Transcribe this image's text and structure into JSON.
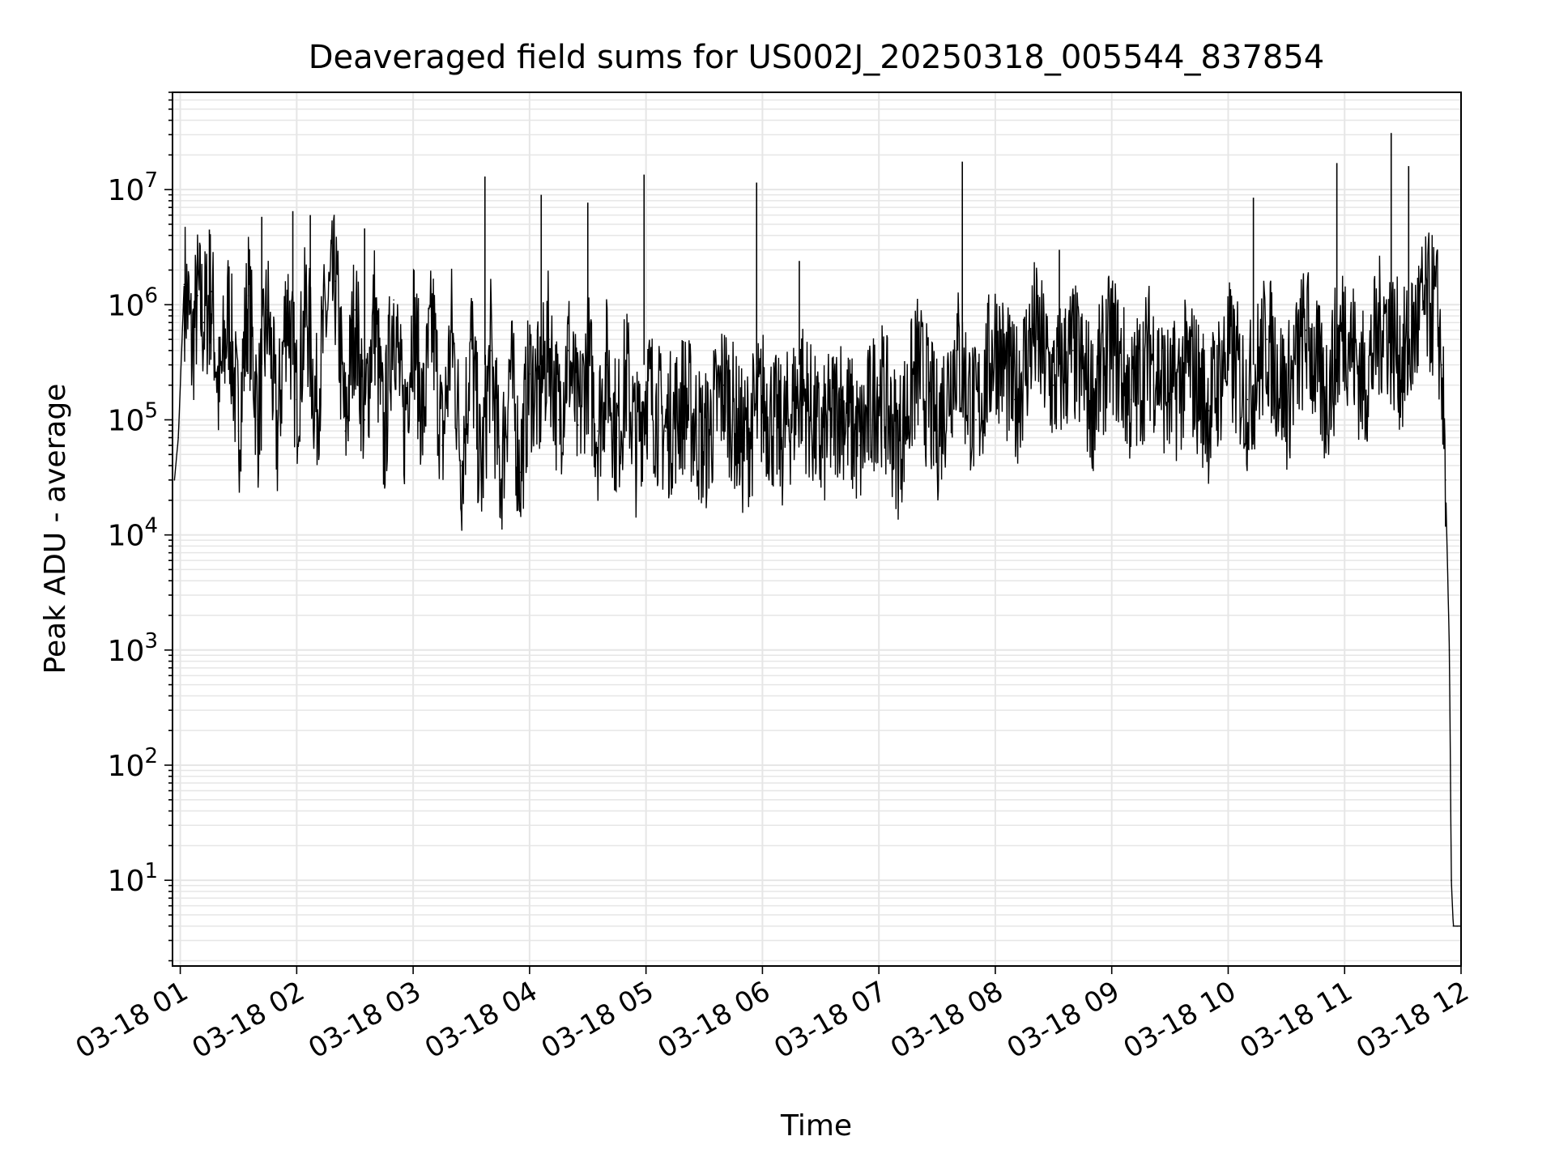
{
  "chart_data": {
    "type": "line",
    "title": "Deaveraged field sums for US002J_20250318_005544_837854",
    "xlabel": "Time",
    "ylabel": "Peak ADU - average",
    "yscale": "log",
    "grid": true,
    "ylim": [
      1.8,
      70000000
    ],
    "xlim": [
      "2025-03-18 00:56",
      "2025-03-18 12:00"
    ],
    "x_ticks": [
      "03-18 01",
      "03-18 02",
      "03-18 03",
      "03-18 04",
      "03-18 05",
      "03-18 06",
      "03-18 07",
      "03-18 08",
      "03-18 09",
      "03-18 10",
      "03-18 11",
      "03-18 12"
    ],
    "y_ticks": [
      {
        "base": "10",
        "exp": "1"
      },
      {
        "base": "10",
        "exp": "2"
      },
      {
        "base": "10",
        "exp": "3"
      },
      {
        "base": "10",
        "exp": "4"
      },
      {
        "base": "10",
        "exp": "5"
      },
      {
        "base": "10",
        "exp": "6"
      },
      {
        "base": "10",
        "exp": "7"
      }
    ],
    "line_color": "#000000",
    "grid_color": "#e6e6e6",
    "series": [
      {
        "name": "",
        "x": [
          "2025-03-18 00:57",
          "2025-03-18 00:59",
          "2025-03-18 01:02",
          "2025-03-18 01:04",
          "2025-03-18 01:06",
          "2025-03-18 01:09",
          "2025-03-18 01:12",
          "2025-03-18 01:16",
          "2025-03-18 01:20",
          "2025-03-18 01:25",
          "2025-03-18 01:30",
          "2025-03-18 01:35",
          "2025-03-18 01:40",
          "2025-03-18 01:45",
          "2025-03-18 01:50",
          "2025-03-18 01:55",
          "2025-03-18 02:00",
          "2025-03-18 02:05",
          "2025-03-18 02:10",
          "2025-03-18 02:15",
          "2025-03-18 02:20",
          "2025-03-18 02:25",
          "2025-03-18 02:30",
          "2025-03-18 02:35",
          "2025-03-18 02:40",
          "2025-03-18 02:45",
          "2025-03-18 02:50",
          "2025-03-18 02:55",
          "2025-03-18 03:00",
          "2025-03-18 03:05",
          "2025-03-18 03:10",
          "2025-03-18 03:15",
          "2025-03-18 03:20",
          "2025-03-18 03:25",
          "2025-03-18 03:30",
          "2025-03-18 03:35",
          "2025-03-18 03:40",
          "2025-03-18 03:45",
          "2025-03-18 03:50",
          "2025-03-18 03:55",
          "2025-03-18 04:00",
          "2025-03-18 04:05",
          "2025-03-18 04:10",
          "2025-03-18 04:15",
          "2025-03-18 04:20",
          "2025-03-18 04:25",
          "2025-03-18 04:30",
          "2025-03-18 04:35",
          "2025-03-18 04:40",
          "2025-03-18 04:45",
          "2025-03-18 04:50",
          "2025-03-18 04:55",
          "2025-03-18 05:00",
          "2025-03-18 05:10",
          "2025-03-18 05:20",
          "2025-03-18 05:30",
          "2025-03-18 05:40",
          "2025-03-18 05:50",
          "2025-03-18 06:00",
          "2025-03-18 06:10",
          "2025-03-18 06:20",
          "2025-03-18 06:30",
          "2025-03-18 06:40",
          "2025-03-18 06:50",
          "2025-03-18 07:00",
          "2025-03-18 07:10",
          "2025-03-18 07:20",
          "2025-03-18 07:30",
          "2025-03-18 07:40",
          "2025-03-18 07:50",
          "2025-03-18 08:00",
          "2025-03-18 08:10",
          "2025-03-18 08:20",
          "2025-03-18 08:30",
          "2025-03-18 08:40",
          "2025-03-18 08:50",
          "2025-03-18 09:00",
          "2025-03-18 09:10",
          "2025-03-18 09:20",
          "2025-03-18 09:30",
          "2025-03-18 09:40",
          "2025-03-18 09:50",
          "2025-03-18 10:00",
          "2025-03-18 10:10",
          "2025-03-18 10:20",
          "2025-03-18 10:30",
          "2025-03-18 10:40",
          "2025-03-18 10:50",
          "2025-03-18 11:00",
          "2025-03-18 11:10",
          "2025-03-18 11:20",
          "2025-03-18 11:30",
          "2025-03-18 11:40",
          "2025-03-18 11:45",
          "2025-03-18 11:48",
          "2025-03-18 11:50",
          "2025-03-18 11:52",
          "2025-03-18 11:54",
          "2025-03-18 11:55",
          "2025-03-18 11:56",
          "2025-03-18 11:58",
          "2025-03-18 12:00"
        ],
        "y": [
          30000,
          70000,
          1500000,
          1000000,
          400000,
          1200000,
          700000,
          1300000,
          150000,
          900000,
          80000,
          1200000,
          100000,
          900000,
          70000,
          1200000,
          150000,
          1000000,
          120000,
          800000,
          1600000,
          80000,
          900000,
          100000,
          900000,
          60000,
          1100000,
          80000,
          800000,
          100000,
          700000,
          60000,
          600000,
          40000,
          500000,
          30000,
          400000,
          30000,
          300000,
          35000,
          250000,
          150000,
          500000,
          100000,
          400000,
          90000,
          350000,
          80000,
          300000,
          70000,
          250000,
          60000,
          200000,
          80000,
          150000,
          60000,
          200000,
          60000,
          150000,
          70000,
          200000,
          60000,
          150000,
          60000,
          200000,
          60000,
          300000,
          80000,
          400000,
          100000,
          500000,
          150000,
          600000,
          200000,
          400000,
          150000,
          500000,
          150000,
          400000,
          150000,
          300000,
          120000,
          400000,
          150000,
          500000,
          150000,
          600000,
          150000,
          700000,
          200000,
          800000,
          300000,
          900000,
          1000000,
          800000,
          300000,
          30000,
          1000,
          10,
          4,
          4,
          4
        ]
      }
    ],
    "spikes": [
      {
        "x": "2025-03-18 01:15",
        "y": 4500000
      },
      {
        "x": "2025-03-18 01:42",
        "y": 5800000
      },
      {
        "x": "2025-03-18 01:58",
        "y": 6500000
      },
      {
        "x": "2025-03-18 02:07",
        "y": 6000000
      },
      {
        "x": "2025-03-18 02:35",
        "y": 4600000
      },
      {
        "x": "2025-03-18 03:37",
        "y": 13000000
      },
      {
        "x": "2025-03-18 04:06",
        "y": 9000000
      },
      {
        "x": "2025-03-18 04:30",
        "y": 7700000
      },
      {
        "x": "2025-03-18 04:59",
        "y": 13500000
      },
      {
        "x": "2025-03-18 05:57",
        "y": 11500000
      },
      {
        "x": "2025-03-18 06:19",
        "y": 2400000
      },
      {
        "x": "2025-03-18 07:43",
        "y": 17500000
      },
      {
        "x": "2025-03-18 08:33",
        "y": 3000000
      },
      {
        "x": "2025-03-18 10:13",
        "y": 8500000
      },
      {
        "x": "2025-03-18 10:56",
        "y": 17000000
      },
      {
        "x": "2025-03-18 11:24",
        "y": 31000000
      },
      {
        "x": "2025-03-18 11:33",
        "y": 16000000
      }
    ]
  }
}
